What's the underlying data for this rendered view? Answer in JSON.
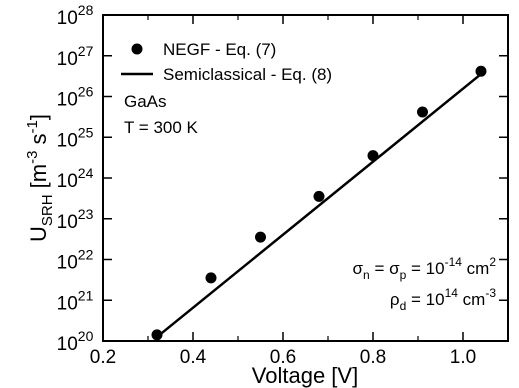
{
  "chart_data": {
    "type": "scatter",
    "xlabel": "Voltage [V]",
    "ylabel": {
      "base": "U",
      "sub": "SRH",
      "unit_open": " [m",
      "exp1": "-3",
      "mid": " s",
      "exp2": "-1",
      "unit_close": "]"
    },
    "xlim": [
      0.2,
      1.1
    ],
    "ylim_log10": [
      20,
      28
    ],
    "y_scale": "log",
    "grid": false,
    "x_ticks": [
      0.2,
      0.4,
      0.6,
      0.8,
      1.0
    ],
    "x_tick_labels": [
      "0.2",
      "0.4",
      "0.6",
      "0.8",
      "1.0"
    ],
    "y_ticks_log10": [
      20,
      21,
      22,
      23,
      24,
      25,
      26,
      27,
      28
    ],
    "y_tick_base": "10",
    "y_tick_exponents": [
      "20",
      "21",
      "22",
      "23",
      "24",
      "25",
      "26",
      "27",
      "28"
    ],
    "series": [
      {
        "name": "NEGF - Eq. (7)",
        "kind": "points",
        "x": [
          0.32,
          0.44,
          0.55,
          0.68,
          0.8,
          0.91,
          1.04
        ],
        "y_log10": [
          20.15,
          21.55,
          22.55,
          23.55,
          24.55,
          25.62,
          26.62
        ]
      },
      {
        "name": "Semiclassical - Eq. (8)",
        "kind": "line",
        "x": [
          0.32,
          1.04
        ],
        "y_log10": [
          20.1,
          26.55
        ]
      }
    ],
    "legend": {
      "position": "top-left"
    },
    "annotations": [
      "GaAs",
      "T = 300 K"
    ],
    "parameters": {
      "line1": {
        "s1": "σ",
        "s1sub": "n",
        "eq1": " = ",
        "s2": "σ",
        "s2sub": "p",
        "eq2": " = 10",
        "exp": "-14",
        "unit": " cm",
        "unitexp": "2"
      },
      "line2": {
        "s1": "ρ",
        "s1sub": "d",
        "eq1": " = 10",
        "exp": "14",
        "unit": " cm",
        "unitexp": "-3"
      }
    }
  },
  "colors": {
    "axis": "#000000",
    "marker": "#000000",
    "line": "#000000"
  }
}
